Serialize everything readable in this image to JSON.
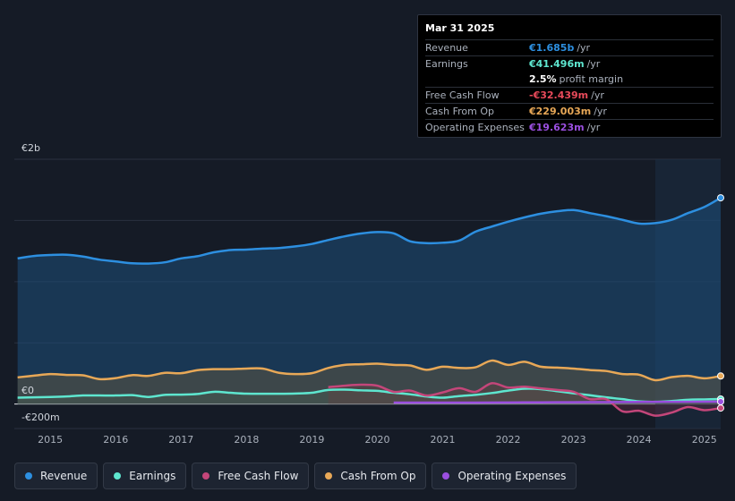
{
  "tooltip": {
    "date": "Mar 31 2025",
    "rows": [
      {
        "label": "Revenue",
        "value": "€1.685b",
        "unit": "/yr",
        "color": "#2d8fe0"
      },
      {
        "label": "Earnings",
        "value": "€41.496m",
        "unit": "/yr",
        "color": "#5ee6cf"
      },
      {
        "label": "",
        "value": "2.5%",
        "unit": "profit margin",
        "color": "#ffffff"
      },
      {
        "label": "Free Cash Flow",
        "value": "-€32.439m",
        "unit": "/yr",
        "color": "#e84a5a"
      },
      {
        "label": "Cash From Op",
        "value": "€229.003m",
        "unit": "/yr",
        "color": "#e8a857"
      },
      {
        "label": "Operating Expenses",
        "value": "€19.623m",
        "unit": "/yr",
        "color": "#9b4fe0"
      }
    ]
  },
  "legend": [
    {
      "label": "Revenue",
      "color": "#2d8fe0"
    },
    {
      "label": "Earnings",
      "color": "#5ee6cf"
    },
    {
      "label": "Free Cash Flow",
      "color": "#c4467a"
    },
    {
      "label": "Cash From Op",
      "color": "#e8a857"
    },
    {
      "label": "Operating Expenses",
      "color": "#9b4fe0"
    }
  ],
  "chart_data": {
    "type": "area",
    "ylabel_top": "€2b",
    "ylabel_zero": "€0",
    "ylabel_bottom": "-€200m",
    "ylim": [
      -200,
      2000
    ],
    "xlim": [
      2014.45,
      2025.25
    ],
    "forecast_start": 2024.25,
    "x_ticks": [
      "2015",
      "2016",
      "2017",
      "2018",
      "2019",
      "2020",
      "2021",
      "2022",
      "2023",
      "2024",
      "2025"
    ],
    "series": [
      {
        "name": "Revenue",
        "color": "#2d8fe0",
        "points": [
          [
            2014.5,
            1190
          ],
          [
            2014.75,
            1210
          ],
          [
            2015.0,
            1218
          ],
          [
            2015.25,
            1220
          ],
          [
            2015.5,
            1205
          ],
          [
            2015.75,
            1180
          ],
          [
            2016.0,
            1165
          ],
          [
            2016.25,
            1150
          ],
          [
            2016.5,
            1148
          ],
          [
            2016.75,
            1158
          ],
          [
            2017.0,
            1190
          ],
          [
            2017.25,
            1208
          ],
          [
            2017.5,
            1240
          ],
          [
            2017.75,
            1258
          ],
          [
            2018.0,
            1262
          ],
          [
            2018.25,
            1270
          ],
          [
            2018.5,
            1275
          ],
          [
            2018.75,
            1288
          ],
          [
            2019.0,
            1308
          ],
          [
            2019.25,
            1340
          ],
          [
            2019.5,
            1370
          ],
          [
            2019.75,
            1393
          ],
          [
            2020.0,
            1405
          ],
          [
            2020.25,
            1395
          ],
          [
            2020.5,
            1330
          ],
          [
            2020.75,
            1315
          ],
          [
            2021.0,
            1318
          ],
          [
            2021.25,
            1335
          ],
          [
            2021.5,
            1408
          ],
          [
            2021.75,
            1450
          ],
          [
            2022.0,
            1490
          ],
          [
            2022.25,
            1525
          ],
          [
            2022.5,
            1555
          ],
          [
            2022.75,
            1575
          ],
          [
            2023.0,
            1585
          ],
          [
            2023.25,
            1560
          ],
          [
            2023.5,
            1535
          ],
          [
            2023.75,
            1505
          ],
          [
            2024.0,
            1475
          ],
          [
            2024.25,
            1478
          ],
          [
            2024.5,
            1505
          ],
          [
            2024.75,
            1560
          ],
          [
            2025.0,
            1610
          ],
          [
            2025.25,
            1685
          ]
        ]
      },
      {
        "name": "Earnings",
        "color": "#5ee6cf",
        "points": [
          [
            2014.5,
            52
          ],
          [
            2014.75,
            55
          ],
          [
            2015.0,
            58
          ],
          [
            2015.25,
            62
          ],
          [
            2015.5,
            70
          ],
          [
            2015.75,
            70
          ],
          [
            2016.0,
            70
          ],
          [
            2016.25,
            73
          ],
          [
            2016.5,
            58
          ],
          [
            2016.75,
            75
          ],
          [
            2017.0,
            77
          ],
          [
            2017.25,
            82
          ],
          [
            2017.5,
            100
          ],
          [
            2017.75,
            92
          ],
          [
            2018.0,
            85
          ],
          [
            2018.25,
            84
          ],
          [
            2018.5,
            84
          ],
          [
            2018.75,
            86
          ],
          [
            2019.0,
            92
          ],
          [
            2019.25,
            115
          ],
          [
            2019.5,
            118
          ],
          [
            2019.75,
            112
          ],
          [
            2020.0,
            108
          ],
          [
            2020.25,
            92
          ],
          [
            2020.5,
            80
          ],
          [
            2020.75,
            62
          ],
          [
            2021.0,
            52
          ],
          [
            2021.25,
            65
          ],
          [
            2021.5,
            75
          ],
          [
            2021.75,
            90
          ],
          [
            2022.0,
            110
          ],
          [
            2022.25,
            125
          ],
          [
            2022.5,
            122
          ],
          [
            2022.75,
            105
          ],
          [
            2023.0,
            88
          ],
          [
            2023.25,
            72
          ],
          [
            2023.5,
            55
          ],
          [
            2023.75,
            40
          ],
          [
            2024.0,
            22
          ],
          [
            2024.25,
            18
          ],
          [
            2024.5,
            25
          ],
          [
            2024.75,
            35
          ],
          [
            2025.0,
            38
          ],
          [
            2025.25,
            41.5
          ]
        ]
      },
      {
        "name": "Free Cash Flow",
        "color": "#c4467a",
        "points": [
          [
            2019.25,
            138
          ],
          [
            2019.5,
            150
          ],
          [
            2019.75,
            158
          ],
          [
            2020.0,
            150
          ],
          [
            2020.25,
            100
          ],
          [
            2020.5,
            110
          ],
          [
            2020.75,
            70
          ],
          [
            2021.0,
            95
          ],
          [
            2021.25,
            130
          ],
          [
            2021.5,
            100
          ],
          [
            2021.75,
            170
          ],
          [
            2022.0,
            135
          ],
          [
            2022.25,
            142
          ],
          [
            2022.5,
            128
          ],
          [
            2022.75,
            115
          ],
          [
            2023.0,
            100
          ],
          [
            2023.25,
            40
          ],
          [
            2023.5,
            40
          ],
          [
            2023.75,
            -60
          ],
          [
            2024.0,
            -55
          ],
          [
            2024.25,
            -95
          ],
          [
            2024.5,
            -70
          ],
          [
            2024.75,
            -25
          ],
          [
            2025.0,
            -50
          ],
          [
            2025.25,
            -32.4
          ]
        ]
      },
      {
        "name": "Cash From Op",
        "color": "#e8a857",
        "points": [
          [
            2014.5,
            218
          ],
          [
            2014.75,
            232
          ],
          [
            2015.0,
            245
          ],
          [
            2015.25,
            238
          ],
          [
            2015.5,
            235
          ],
          [
            2015.75,
            204
          ],
          [
            2016.0,
            212
          ],
          [
            2016.25,
            236
          ],
          [
            2016.5,
            230
          ],
          [
            2016.75,
            255
          ],
          [
            2017.0,
            252
          ],
          [
            2017.25,
            277
          ],
          [
            2017.5,
            285
          ],
          [
            2017.75,
            285
          ],
          [
            2018.0,
            290
          ],
          [
            2018.25,
            290
          ],
          [
            2018.5,
            255
          ],
          [
            2018.75,
            245
          ],
          [
            2019.0,
            252
          ],
          [
            2019.25,
            295
          ],
          [
            2019.5,
            320
          ],
          [
            2019.75,
            325
          ],
          [
            2020.0,
            330
          ],
          [
            2020.25,
            320
          ],
          [
            2020.5,
            315
          ],
          [
            2020.75,
            280
          ],
          [
            2021.0,
            305
          ],
          [
            2021.25,
            295
          ],
          [
            2021.5,
            300
          ],
          [
            2021.75,
            355
          ],
          [
            2022.0,
            320
          ],
          [
            2022.25,
            345
          ],
          [
            2022.5,
            305
          ],
          [
            2022.75,
            298
          ],
          [
            2023.0,
            290
          ],
          [
            2023.25,
            278
          ],
          [
            2023.5,
            270
          ],
          [
            2023.75,
            245
          ],
          [
            2024.0,
            240
          ],
          [
            2024.25,
            195
          ],
          [
            2024.5,
            220
          ],
          [
            2024.75,
            230
          ],
          [
            2025.0,
            210
          ],
          [
            2025.25,
            229
          ]
        ]
      },
      {
        "name": "Operating Expenses",
        "color": "#9b4fe0",
        "points": [
          [
            2020.25,
            12
          ],
          [
            2020.5,
            12
          ],
          [
            2021.0,
            12
          ],
          [
            2021.5,
            12
          ],
          [
            2022.0,
            13
          ],
          [
            2022.5,
            14
          ],
          [
            2023.0,
            15
          ],
          [
            2023.5,
            16
          ],
          [
            2024.0,
            17
          ],
          [
            2024.5,
            18
          ],
          [
            2025.0,
            19
          ],
          [
            2025.25,
            19.6
          ]
        ]
      }
    ]
  }
}
